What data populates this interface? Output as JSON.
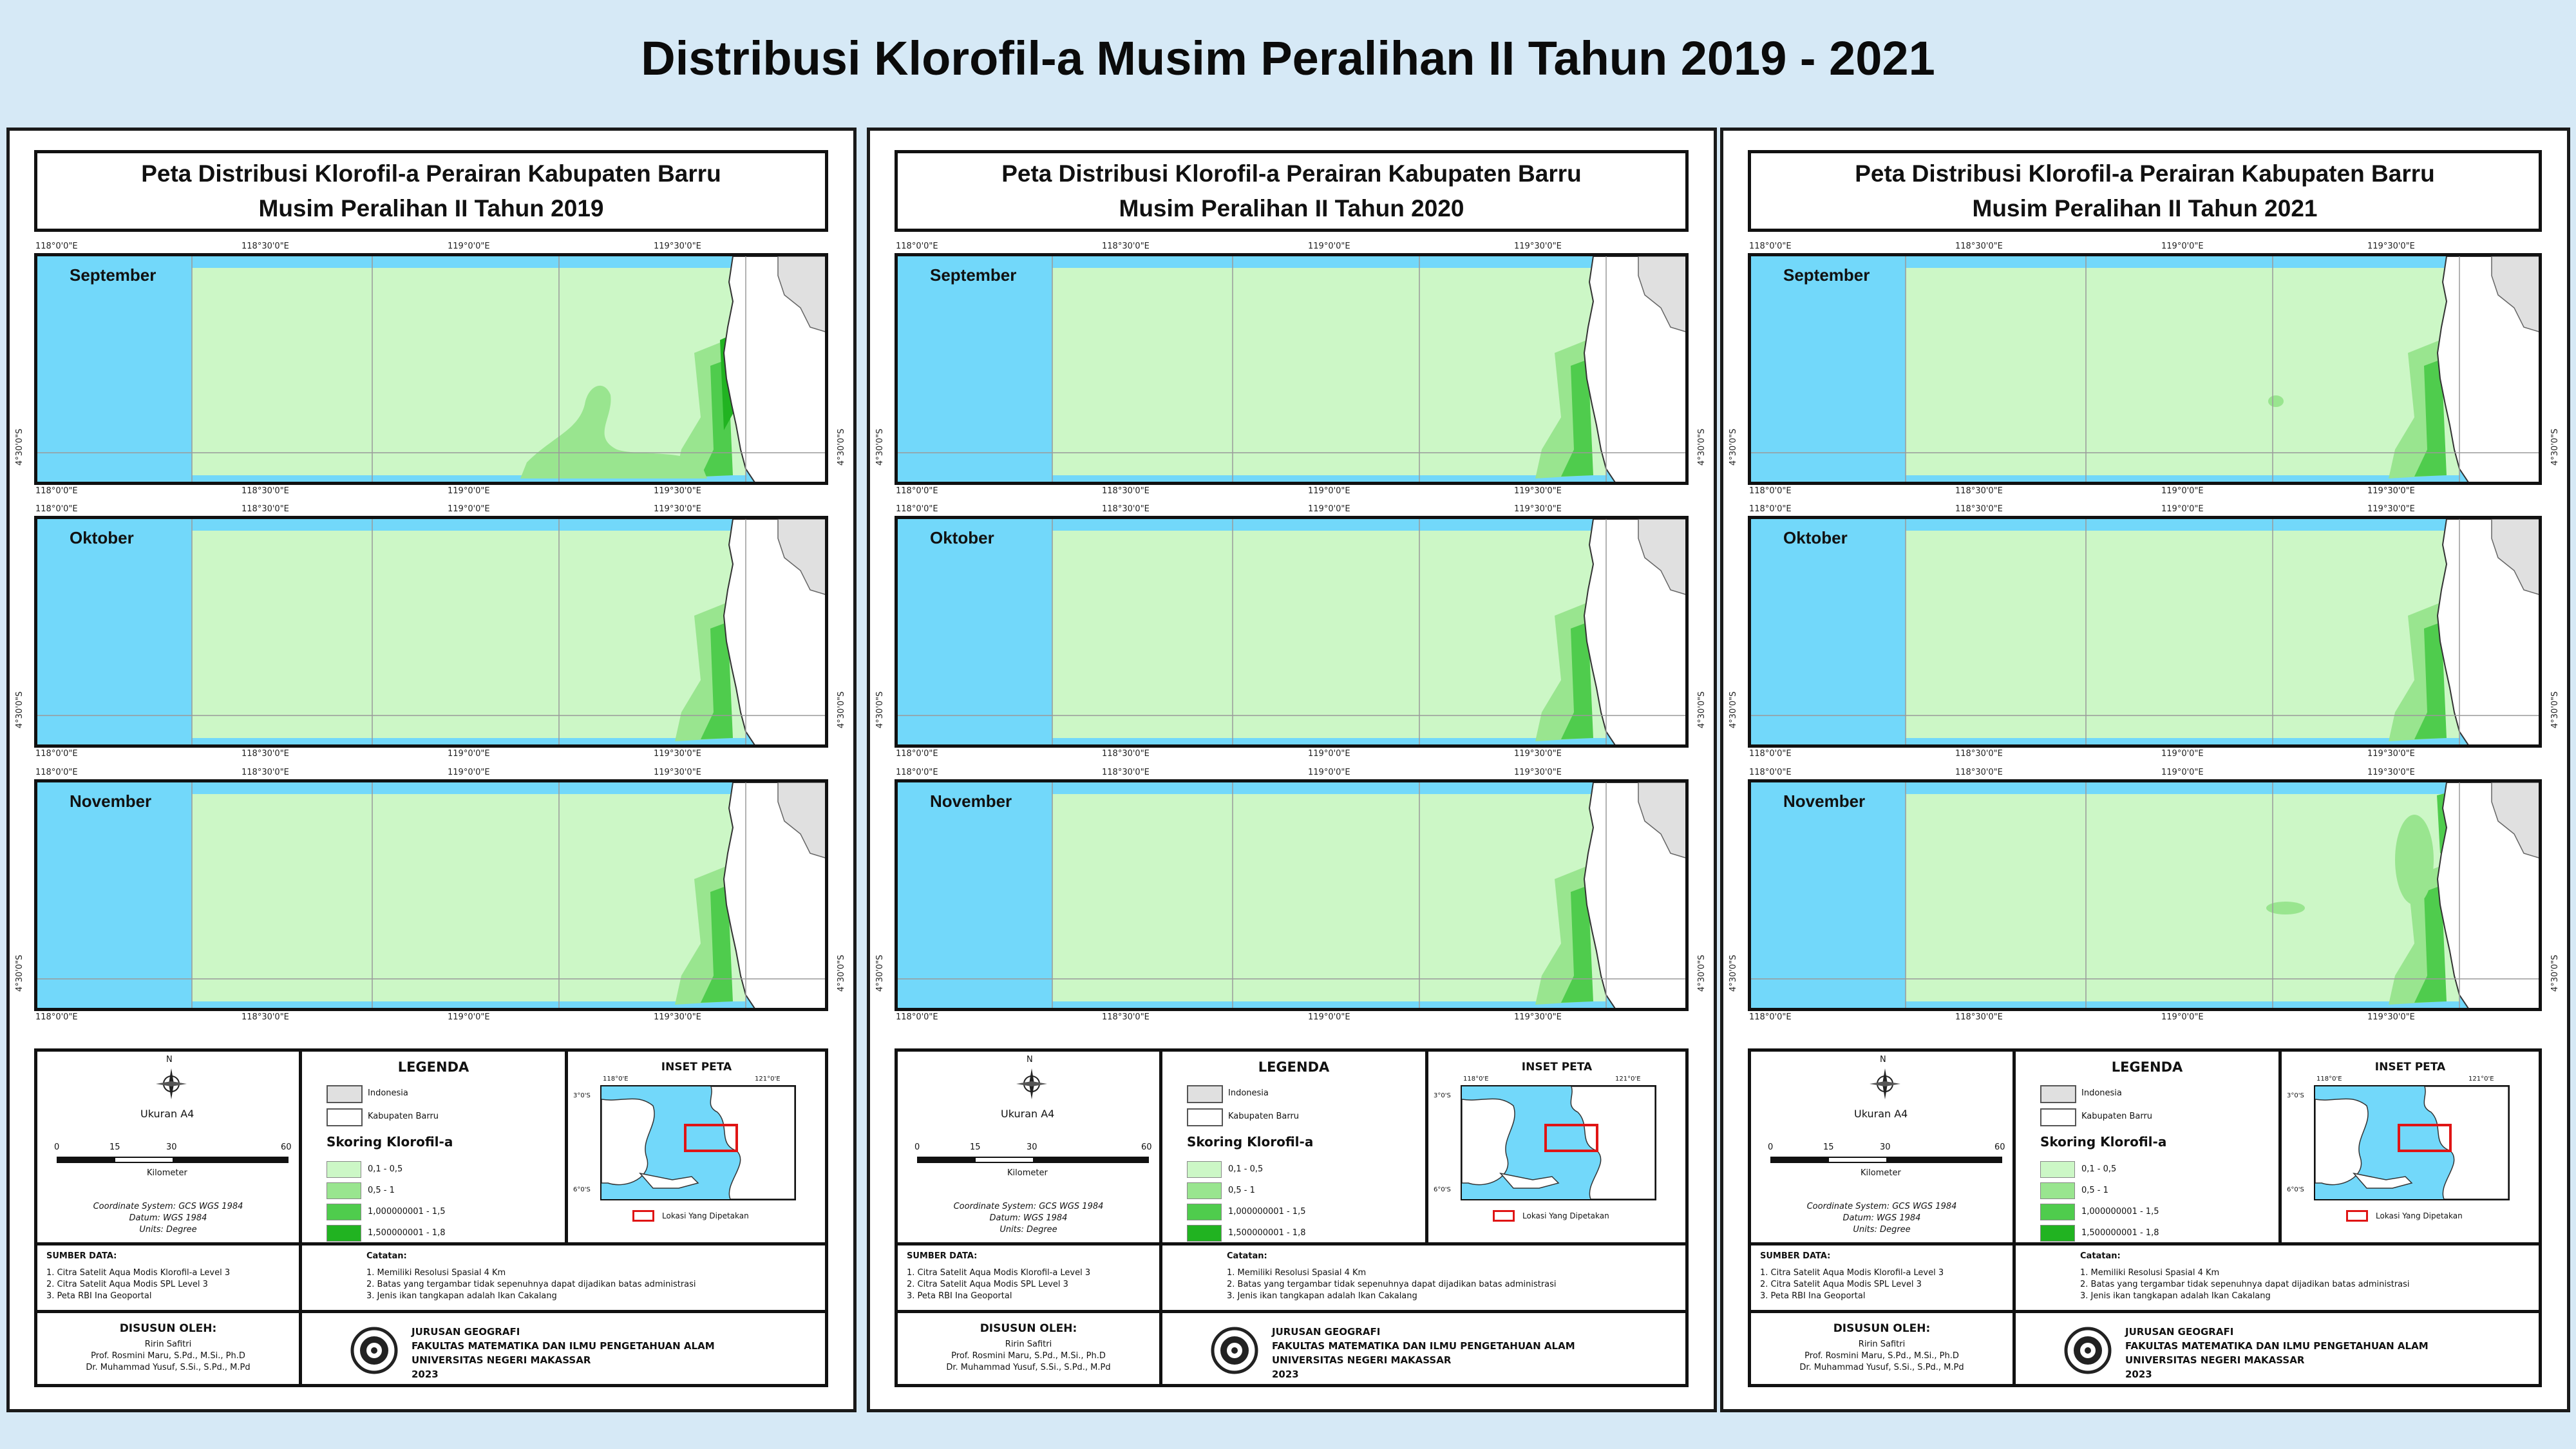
{
  "slide_title": "Distribusi Klorofil-a Musim Peralihan II Tahun 2019 - 2021",
  "colors": {
    "background": "#d6e9f6",
    "sea": "#72d8fa",
    "class_1": "#ccf7c6",
    "class_2": "#99e58f",
    "class_3": "#4fcc4d",
    "class_4": "#21b321",
    "land_kabupaten": "#ffffff",
    "land_indonesia": "#e0e0e0",
    "inset_box": "#e01515"
  },
  "coords": {
    "lon_labels": [
      "118°0'0\"E",
      "118°30'0\"E",
      "119°0'0\"E",
      "119°30'0\"E"
    ],
    "lat_label": "4°30'0\"S"
  },
  "panels": [
    {
      "map_title_line1": "Peta Distribusi Klorofil-a Perairan Kabupaten Barru",
      "map_title_line2": "Musim Peralihan II Tahun 2019",
      "maps": [
        {
          "month": "September",
          "blooms": [
            "south-west plume",
            "coastal strip high"
          ]
        },
        {
          "month": "Oktober",
          "blooms": [
            "coastal strip"
          ]
        },
        {
          "month": "November",
          "blooms": [
            "coastal strip"
          ]
        }
      ]
    },
    {
      "map_title_line1": "Peta Distribusi Klorofil-a Perairan Kabupaten Barru",
      "map_title_line2": "Musim Peralihan II Tahun 2020",
      "maps": [
        {
          "month": "September",
          "blooms": [
            "coastal strip"
          ]
        },
        {
          "month": "Oktober",
          "blooms": [
            "coastal strip"
          ]
        },
        {
          "month": "November",
          "blooms": [
            "coastal strip"
          ]
        }
      ]
    },
    {
      "map_title_line1": "Peta Distribusi Klorofil-a Perairan Kabupaten Barru",
      "map_title_line2": "Musim Peralihan II Tahun 2021",
      "maps": [
        {
          "month": "September",
          "blooms": [
            "coastal strip"
          ]
        },
        {
          "month": "Oktober",
          "blooms": [
            "coastal strip"
          ]
        },
        {
          "month": "November",
          "blooms": [
            "coastal strip",
            "offshore patches"
          ]
        }
      ]
    }
  ],
  "scale": {
    "north_label": "N",
    "paper": "Ukuran A4",
    "ticks": [
      "0",
      "15",
      "30",
      "60"
    ],
    "unit": "Kilometer",
    "crs_line1": "Coordinate System: GCS WGS 1984",
    "crs_line2": "Datum: WGS 1984",
    "crs_line3": "Units: Degree"
  },
  "legend": {
    "title": "LEGENDA",
    "indonesia": "Indonesia",
    "kabupaten": "Kabupaten Barru",
    "skoring_title": "Skoring Klorofil-a",
    "classes": [
      "0,1 - 0,5",
      "0,5 - 1",
      "1,000000001 - 1,5",
      "1,500000001 - 1,8"
    ]
  },
  "inset": {
    "title": "INSET PETA",
    "caption": "Lokasi Yang Dipetakan",
    "lon_left": "118°0'E",
    "lon_right": "121°0'E",
    "lat_top": "3°0'S",
    "lat_bottom": "6°0'S"
  },
  "sources": {
    "title": "SUMBER DATA:",
    "items": [
      "1. Citra Satelit Aqua Modis Klorofil-a Level 3",
      "2. Citra Satelit Aqua Modis SPL Level 3",
      "3. Peta RBI Ina Geoportal"
    ]
  },
  "notes": {
    "title": "Catatan:",
    "items": [
      "1. Memiliki Resolusi Spasial 4 Km",
      "2. Batas yang tergambar tidak sepenuhnya dapat dijadikan batas administrasi",
      "3. Jenis ikan tangkapan adalah Ikan Cakalang"
    ]
  },
  "author": {
    "title": "DISUSUN OLEH:",
    "name": "Ririn Safitri",
    "advisor1": "Prof. Rosmini Maru, S.Pd., M.Si., Ph.D",
    "advisor2": "Dr. Muhammad Yusuf, S.Si., S.Pd., M.Pd"
  },
  "institution": {
    "line1": "JURUSAN GEOGRAFI",
    "line2": "FAKULTAS MATEMATIKA DAN ILMU PENGETAHUAN ALAM",
    "line3": "UNIVERSITAS NEGERI MAKASSAR",
    "line4": "2023"
  }
}
